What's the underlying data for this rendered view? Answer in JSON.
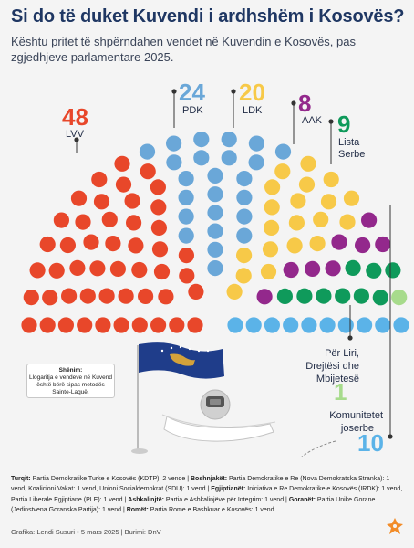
{
  "title": "Si do të duket Kuvendi i ardhshëm i Kosovës?",
  "subtitle": "Kështu pritet të shpërndahen vendet në Kuvendin e Kosovës, pas zgjedhjeve parlamentare 2025.",
  "note": {
    "title": "Shënim:",
    "text": "Llogaritja e vendeve në Kuvend është bërë sipas metodës Sainte-Laguë."
  },
  "footnote": {
    "turqit_label": "Turqit:",
    "turqit_text": " Partia Demokratike Turke e Kosovës (KDTP): 2 vende | ",
    "boshnjaket_label": "Boshnjakët:",
    "boshnjaket_text": " Partia Demokratike e Re (Nova Demokratska Stranka): 1 vend, Koalicioni Vakat: 1 vend, Unioni Socialdemokrat (SDU): 1 vend | ",
    "egjiptianet_label": "Egjiptianët:",
    "egjiptianet_text": " Iniciativa e Re Demokratike e Kosovës (IRDK): 1 vend, Partia Liberale Egjiptiane (PLE): 1 vend | ",
    "ashkalinjte_label": "Ashkalinjtë:",
    "ashkalinjte_text": " Partia e Ashkalinjëve për Integrim: 1 vend | ",
    "goranet_label": "Goranët:",
    "goranet_text": " Partia Unike Gorane (Jedinstvena Goranska Partija): 1 vend | ",
    "romet_label": "Romët:",
    "romet_text": " Partia Rome e Bashkuar e Kosovës: 1 vend"
  },
  "credit": "Grafika: Lendi Susuri • 5 mars 2025 | Burimi: DnV",
  "colors": {
    "LVV": "#e8472a",
    "PDK": "#6aa7d8",
    "LDK": "#f7c948",
    "AAK": "#93288c",
    "ListaSerbe": "#0f9a5b",
    "PerLiri": "#a7db8c",
    "Komunitetet": "#5bb3e8",
    "title": "#1f3763",
    "label": "#1f2a44"
  },
  "chart_data": {
    "type": "parliament",
    "total_seats": 120,
    "series": [
      {
        "key": "LVV",
        "name": "LVV",
        "value": 48
      },
      {
        "key": "PDK",
        "name": "PDK",
        "value": 24
      },
      {
        "key": "LDK",
        "name": "LDK",
        "value": 20
      },
      {
        "key": "AAK",
        "name": "AAK",
        "value": 8
      },
      {
        "key": "ListaSerbe",
        "name": "Lista Serbe",
        "value": 9
      },
      {
        "key": "PerLiri",
        "name": "Për Liri, Drejtësi dhe Mbijetesë",
        "value": 1
      },
      {
        "key": "Komunitetet",
        "name": "Komunitetet joserbe",
        "value": 10
      }
    ],
    "labels": {
      "LVV": {
        "value": "48",
        "name": "LVV"
      },
      "PDK": {
        "value": "24",
        "name": "PDK"
      },
      "LDK": {
        "value": "20",
        "name": "LDK"
      },
      "AAK": {
        "value": "8",
        "name": "AAK"
      },
      "ListaSerbe": {
        "value": "9",
        "name1": "Lista",
        "name2": "Serbe"
      },
      "PerLiri": {
        "value": "1",
        "name1": "Për Liri,",
        "name2": "Drejtësi dhe",
        "name3": "Mbijetesë"
      },
      "Komunitetet": {
        "value": "10",
        "name1": "Komunitetet",
        "name2": "joserbe"
      }
    }
  }
}
